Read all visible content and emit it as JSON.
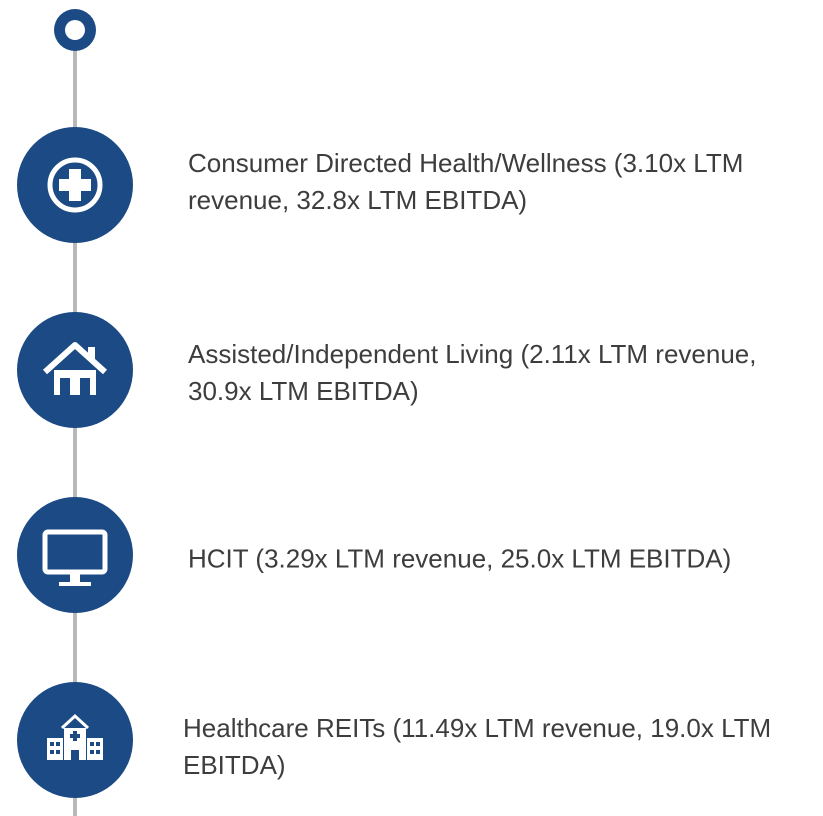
{
  "items": [
    {
      "text": "Consumer Directed Health/Wellness (3.10x LTM revenue, 32.8x LTM EBITDA)"
    },
    {
      "text": "Assisted/Independent Living (2.11x LTM revenue, 30.9x LTM EBITDA)"
    },
    {
      "text": "HCIT (3.29x LTM revenue, 25.0x LTM EBITDA)"
    },
    {
      "text": "Healthcare REITs (11.49x LTM revenue, 19.0x LTM EBITDA)"
    }
  ]
}
